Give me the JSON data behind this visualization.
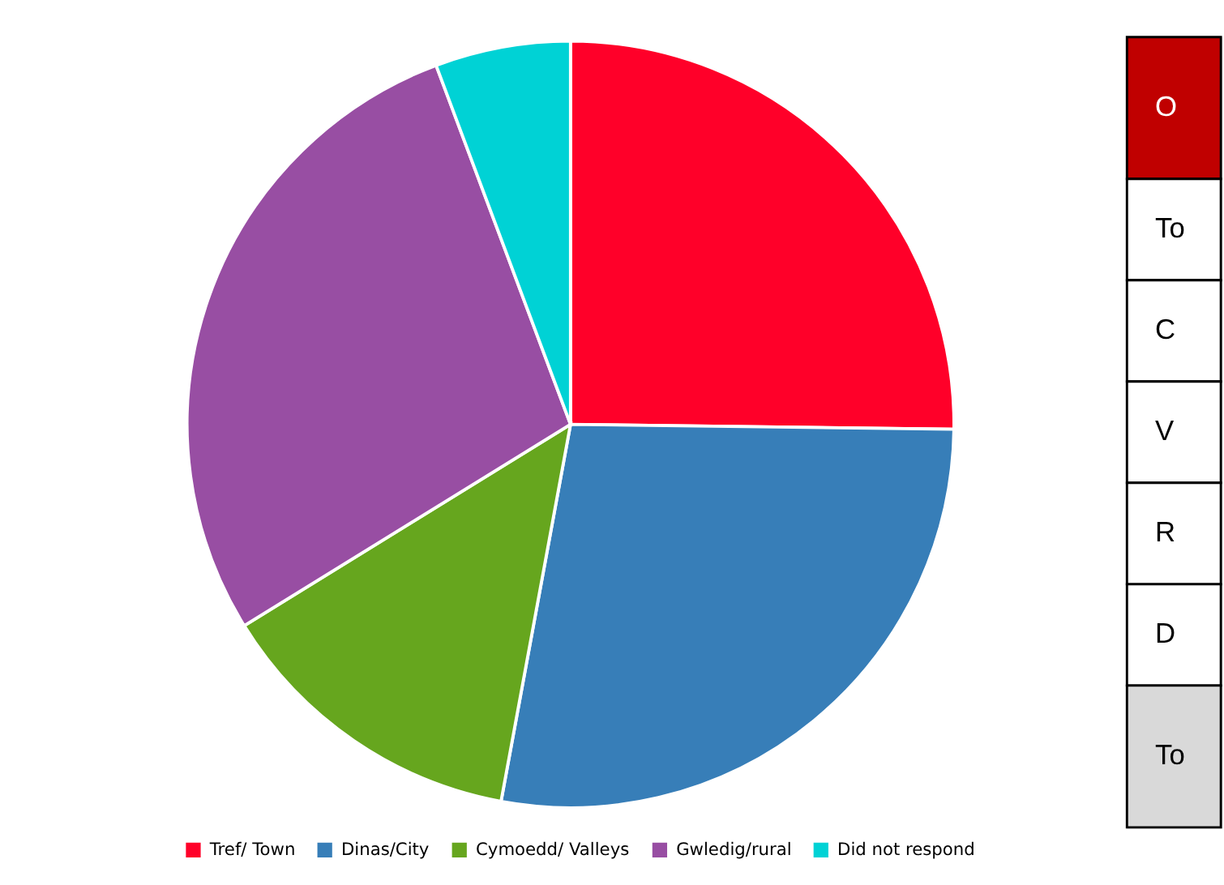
{
  "chart_data": {
    "type": "pie",
    "categories": [
      "Tref/ Town",
      "Dinas/City",
      "Cymoedd/ Valleys",
      "Gwledig/rural",
      "Did not respond"
    ],
    "values": [
      25.2,
      27.7,
      13.3,
      28.1,
      5.7
    ],
    "colors": [
      "#ff0029",
      "#377eb8",
      "#66a61e",
      "#984ea3",
      "#00d2d5"
    ],
    "legend": "bottom",
    "annotations": [
      "O",
      "To",
      "C",
      "V",
      "R",
      "D",
      "To"
    ]
  }
}
